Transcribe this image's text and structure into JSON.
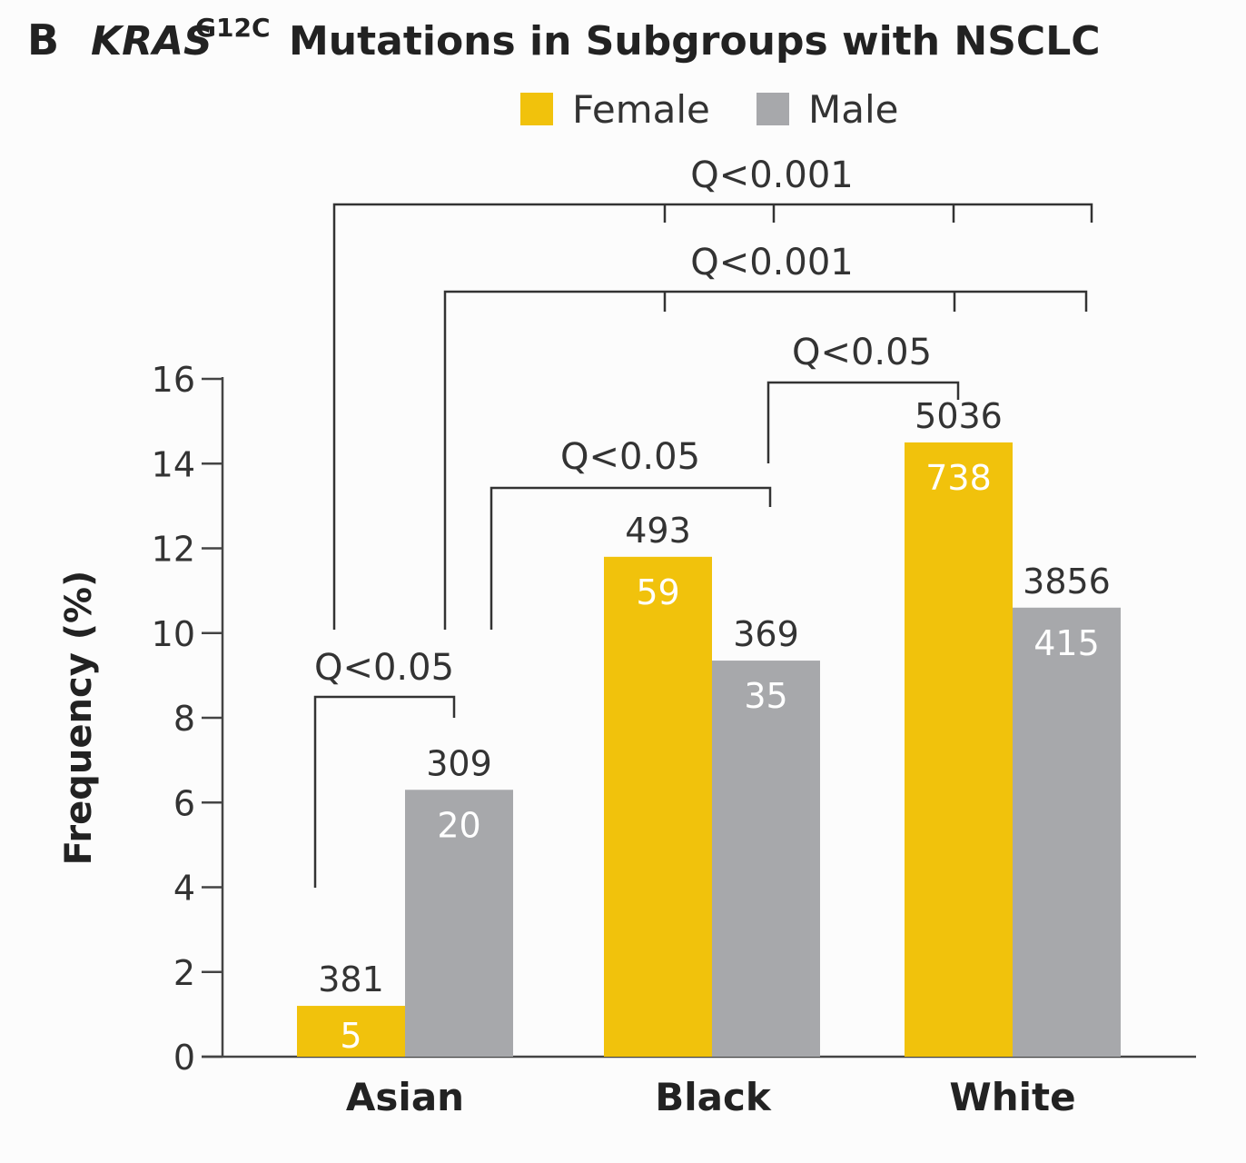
{
  "panel_label": "B",
  "title_gene": "KRAS",
  "title_superscript": "G12C",
  "title_rest": "Mutations in Subgroups with NSCLC",
  "legend": [
    {
      "label": "Female",
      "color": "#f1c20c"
    },
    {
      "label": "Male",
      "color": "#a7a8ab"
    }
  ],
  "chart_data": {
    "type": "bar",
    "categories": [
      "Asian",
      "Black",
      "White"
    ],
    "ylabel": "Frequency (%)",
    "ylim": [
      0,
      16
    ],
    "yticks": [
      0,
      2,
      4,
      6,
      8,
      10,
      12,
      14,
      16
    ],
    "series": [
      {
        "name": "Female",
        "color": "#f1c20c",
        "values": [
          1.2,
          11.8,
          14.5
        ],
        "totals": [
          "381",
          "493",
          "5036"
        ],
        "mutants": [
          "5",
          "59",
          "738"
        ]
      },
      {
        "name": "Male",
        "color": "#a7a8ab",
        "values": [
          6.3,
          9.35,
          10.6
        ],
        "totals": [
          "309",
          "369",
          "3856"
        ],
        "mutants": [
          "20",
          "35",
          "415"
        ]
      }
    ],
    "significance": [
      {
        "label": "Q<0.05",
        "comparison": "Asian Female vs Asian Male"
      },
      {
        "label": "Q<0.05",
        "comparison": "Asian vs Black Female"
      },
      {
        "label": "Q<0.05",
        "comparison": "Black vs White Female"
      },
      {
        "label": "Q<0.001",
        "comparison": "Asian vs Black and White"
      },
      {
        "label": "Q<0.001",
        "comparison": "Asian vs Black and White"
      }
    ]
  }
}
